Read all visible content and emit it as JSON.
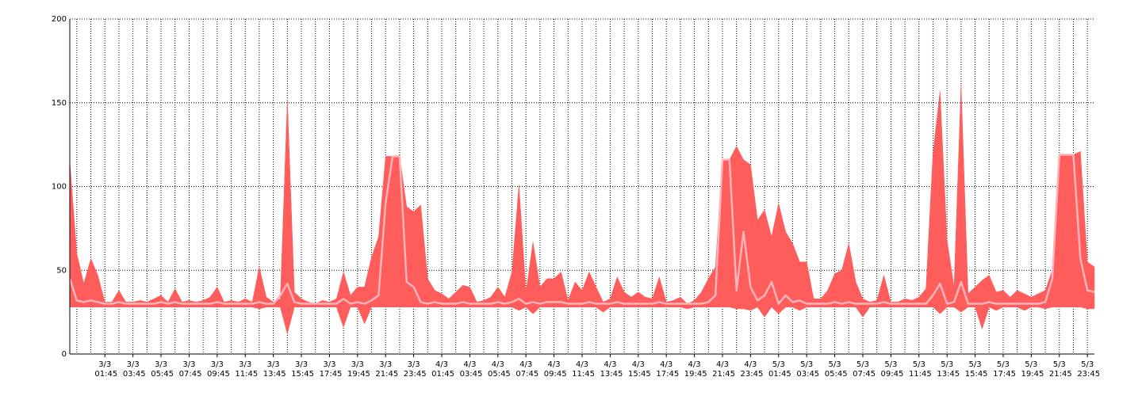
{
  "chart_data": {
    "type": "range_line",
    "grid": true,
    "categories": [
      null,
      null,
      null,
      null,
      null,
      "3/3 01:45",
      null,
      null,
      null,
      "3/3 03:45",
      null,
      null,
      null,
      "3/3 05:45",
      null,
      null,
      null,
      "3/3 07:45",
      null,
      null,
      null,
      "3/3 09:45",
      null,
      null,
      null,
      "3/3 11:45",
      null,
      null,
      null,
      "3/3 13:45",
      null,
      null,
      null,
      "3/3 15:45",
      null,
      null,
      null,
      "3/3 17:45",
      null,
      null,
      null,
      "3/3 19:45",
      null,
      null,
      null,
      "3/3 21:45",
      null,
      null,
      null,
      "3/3 23:45",
      null,
      null,
      null,
      "4/3 01:45",
      null,
      null,
      null,
      "4/3 03:45",
      null,
      null,
      null,
      "4/3 05:45",
      null,
      null,
      null,
      "4/3 07:45",
      null,
      null,
      null,
      "4/3 09:45",
      null,
      null,
      null,
      "4/3 11:45",
      null,
      null,
      null,
      "4/3 13:45",
      null,
      null,
      null,
      "4/3 15:45",
      null,
      null,
      null,
      "4/3 17:45",
      null,
      null,
      null,
      "4/3 19:45",
      null,
      null,
      null,
      "4/3 21:45",
      null,
      null,
      null,
      "4/3 23:45",
      null,
      null,
      null,
      "5/3 01:45",
      null,
      null,
      null,
      "5/3 03:45",
      null,
      null,
      null,
      "5/3 05:45",
      null,
      null,
      null,
      "5/3 07:45",
      null,
      null,
      null,
      "5/3 09:45",
      null,
      null,
      null,
      "5/3 11:45",
      null,
      null,
      null,
      "5/3 13:45",
      null,
      null,
      null,
      "5/3 15:45",
      null,
      null,
      null,
      "5/3 17:45",
      null,
      null,
      null,
      "5/3 19:45",
      null,
      null,
      null,
      "5/3 21:45",
      null,
      null,
      null,
      "5/3 23:45",
      null
    ],
    "series": [
      {
        "color": "#ff5c5c",
        "values": [
          115,
          60,
          42,
          57,
          47,
          31,
          31,
          38,
          31,
          31,
          32,
          31,
          33,
          35,
          31,
          39,
          31,
          32,
          31,
          32,
          34,
          40,
          31,
          32,
          31,
          33,
          31,
          52,
          34,
          31,
          33,
          152,
          37,
          33,
          31,
          30,
          32,
          31,
          33,
          49,
          35,
          40,
          40,
          58,
          70,
          118,
          118,
          118,
          88,
          85,
          89,
          45,
          38,
          36,
          33,
          37,
          41,
          40,
          31,
          32,
          34,
          40,
          34,
          49,
          101,
          37,
          67,
          40,
          45,
          45,
          49,
          32,
          43,
          38,
          49,
          40,
          31,
          33,
          46,
          37,
          34,
          37,
          34,
          33,
          46,
          31,
          32,
          34,
          30,
          32,
          37,
          45,
          52,
          116,
          116,
          124,
          116,
          113,
          80,
          86,
          70,
          90,
          73,
          66,
          55,
          55,
          33,
          33,
          38,
          48,
          50,
          66,
          43,
          33,
          31,
          32,
          47,
          31,
          31,
          33,
          32,
          34,
          39,
          120,
          157,
          68,
          40,
          161,
          36,
          40,
          44,
          47,
          37,
          38,
          34,
          38,
          36,
          34,
          36,
          38,
          50,
          119,
          119,
          119,
          121,
          55,
          52
        ]
      },
      {
        "color": "#ff5c5c",
        "values": [
          28,
          28,
          28,
          28,
          28,
          28,
          28,
          28,
          28,
          28,
          28,
          28,
          28,
          28,
          28,
          28,
          28,
          28,
          28,
          28,
          28,
          28,
          28,
          28,
          28,
          28,
          28,
          27,
          28,
          28,
          28,
          12,
          28,
          28,
          28,
          28,
          28,
          28,
          28,
          16,
          28,
          28,
          18,
          28,
          28,
          28,
          28,
          28,
          28,
          28,
          28,
          28,
          28,
          28,
          28,
          28,
          28,
          28,
          28,
          28,
          28,
          28,
          28,
          28,
          26,
          28,
          24,
          28,
          28,
          28,
          28,
          28,
          28,
          28,
          28,
          28,
          25,
          28,
          28,
          28,
          28,
          28,
          28,
          28,
          28,
          28,
          28,
          28,
          27,
          28,
          28,
          28,
          28,
          28,
          28,
          27,
          27,
          26,
          28,
          22,
          28,
          24,
          28,
          28,
          26,
          28,
          28,
          28,
          28,
          28,
          28,
          28,
          28,
          22,
          28,
          28,
          28,
          28,
          28,
          28,
          28,
          28,
          28,
          28,
          24,
          28,
          28,
          25,
          28,
          28,
          15,
          28,
          26,
          28,
          28,
          28,
          26,
          28,
          28,
          27,
          28,
          28,
          28,
          28,
          28,
          27,
          27
        ]
      },
      {
        "color": "#ffb3bb",
        "values": [
          45,
          32,
          31,
          32,
          31,
          30,
          30,
          31,
          30,
          30,
          30,
          30,
          30,
          31,
          30,
          31,
          30,
          30,
          30,
          30,
          30,
          31,
          30,
          30,
          30,
          30,
          30,
          31,
          30,
          30,
          35,
          42,
          31,
          30,
          30,
          30,
          30,
          30,
          30,
          33,
          30,
          31,
          30,
          32,
          35,
          90,
          118,
          118,
          43,
          40,
          31,
          30,
          31,
          30,
          30,
          30,
          31,
          30,
          30,
          30,
          30,
          31,
          30,
          31,
          33,
          30,
          31,
          30,
          31,
          31,
          31,
          30,
          30,
          30,
          31,
          30,
          30,
          30,
          31,
          30,
          30,
          30,
          30,
          30,
          31,
          30,
          30,
          30,
          30,
          30,
          30,
          31,
          35,
          116,
          116,
          38,
          73,
          40,
          32,
          35,
          43,
          30,
          35,
          31,
          32,
          30,
          30,
          30,
          30,
          31,
          30,
          31,
          30,
          30,
          30,
          30,
          31,
          30,
          30,
          30,
          30,
          30,
          30,
          35,
          42,
          30,
          31,
          43,
          30,
          30,
          30,
          31,
          30,
          30,
          30,
          30,
          30,
          30,
          30,
          31,
          45,
          119,
          119,
          119,
          57,
          38,
          37
        ]
      }
    ],
    "ylim": [
      0,
      200
    ],
    "yticks": [
      0,
      50,
      100,
      150,
      200
    ]
  }
}
